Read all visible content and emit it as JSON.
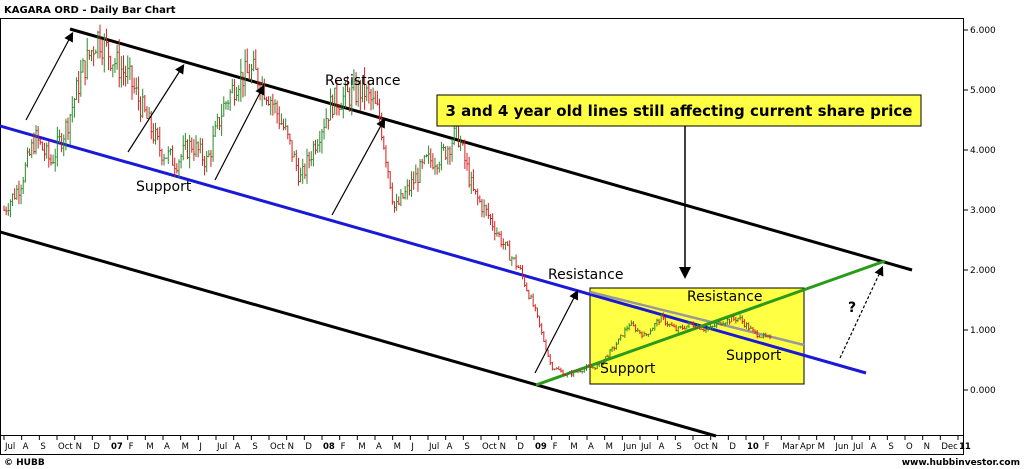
{
  "chart_data": {
    "type": "bar",
    "title": "KAGARA ORD - Daily Bar Chart",
    "footer_left": "© HUBB",
    "footer_right": "www.hubbinvestor.com",
    "ylim": [
      -0.6,
      6.2
    ],
    "y_ticks": [
      "0.000",
      "1.000",
      "2.000",
      "3.000",
      "4.000",
      "5.000",
      "6.000"
    ],
    "x_ticks": [
      "Jul",
      "A",
      "S",
      "Oct",
      "N",
      "D",
      "07",
      "F",
      "M",
      "A",
      "M",
      "J",
      "Jul",
      "A",
      "S",
      "Oct",
      "N",
      "D",
      "08",
      "F",
      "M",
      "A",
      "M",
      "J",
      "Jul",
      "A",
      "S",
      "Oct",
      "N",
      "D",
      "09",
      "F",
      "M",
      "A",
      "M",
      "Jun",
      "Jul",
      "A",
      "S",
      "Oct",
      "N",
      "D",
      "10",
      "F",
      "Mar",
      "Apr",
      "M",
      "Jun",
      "Jul",
      "A",
      "S",
      "O",
      "N",
      "Dec",
      "11"
    ],
    "x_year_ticks": [
      "07",
      "08",
      "09",
      "10",
      "11"
    ],
    "series": [
      {
        "name": "",
        "color": "#2a8a2a",
        "values": [
          3.0,
          3.4,
          4.2,
          3.8,
          4.4,
          5.3,
          5.9,
          5.5,
          5.2,
          4.6,
          4.0,
          3.8,
          4.1,
          3.8,
          4.7,
          5.2,
          5.3,
          4.9,
          4.3,
          3.5,
          4.2,
          4.8,
          4.9,
          5.0,
          4.6,
          3.0,
          3.4,
          3.8,
          3.9,
          4.3,
          3.3,
          2.9,
          2.4,
          2.0,
          1.3,
          0.4,
          0.25,
          0.35,
          0.4,
          0.7,
          1.1,
          0.9,
          1.2,
          1.0,
          1.1,
          1.0,
          1.15,
          1.2,
          0.95,
          0.85
        ]
      }
    ],
    "annotations": {
      "resistance_top": "Resistance",
      "support_left": "Support",
      "resistance_mid": "Resistance",
      "resistance_box": "Resistance",
      "support_box_left": "Support",
      "support_box_right": "Support",
      "question": "?",
      "callout": "3 and 4 year old lines still affecting current share price"
    },
    "colors": {
      "up_bar": "#2a8a2a",
      "down_bar": "#d42020",
      "channel_line": "#000000",
      "blue_line": "#1a1ad6",
      "green_line": "#2a9a1a",
      "highlight": "#ffff44"
    },
    "grid": false
  }
}
